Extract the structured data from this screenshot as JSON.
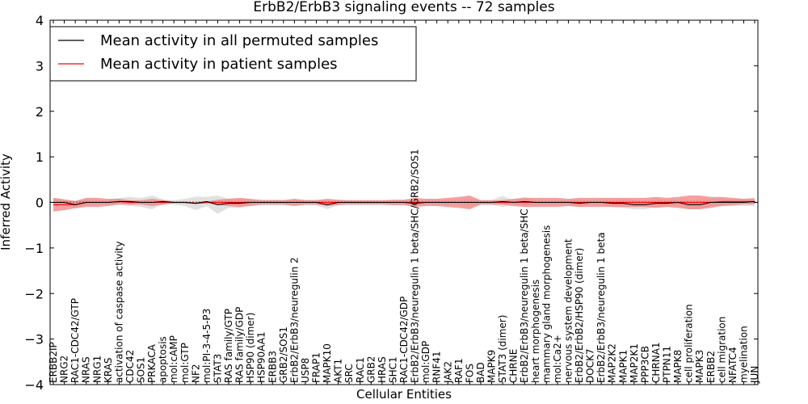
{
  "chart_data": {
    "type": "line",
    "title": "ErbB2/ErbB3 signaling events -- 72 samples",
    "xlabel": "Cellular Entities",
    "ylabel": "Inferred Activity",
    "ylim": [
      -4,
      4
    ],
    "yticks": [
      -4,
      -3,
      -2,
      -1,
      0,
      1,
      2,
      3,
      4
    ],
    "ytick_labels": [
      "−4",
      "−3",
      "−2",
      "−1",
      "0",
      "1",
      "2",
      "3",
      "4"
    ],
    "grid": false,
    "legend_position": "top-left",
    "categories": [
      "ERBB2IP",
      "NRG2",
      "RAC1-CDC42/GTP",
      "NRAS",
      "NRG1",
      "KRAS",
      "activation of caspase activity",
      "CDC42",
      "SOS1",
      "PRKACA",
      "apoptosis",
      "mol:cAMP",
      "mol:GTP",
      "NF2",
      "mol:PI-3-4-5-P3",
      "STAT3",
      "RAS family/GTP",
      "RAS family/GDP",
      "HSP90 (dimer)",
      "HSP90AA1",
      "ERBB3",
      "GRB2/SOS1",
      "ErbB2/ErbB3/neuregulin 2",
      "USP8",
      "FRAP1",
      "MAPK10",
      "AKT1",
      "SRC",
      "RAC1",
      "GRB2",
      "HRAS",
      "SHC1",
      "RAC1-CDC42/GDP",
      "ErbB2/ErbB3/neuregulin 1 beta/SHC/GRB2/SOS1",
      "mol:GDP",
      "RNF41",
      "JAK2",
      "RAF1",
      "FOS",
      "BAD",
      "MAPK9",
      "STAT3 (dimer)",
      "CHRNE",
      "ErbB2/ErbB3/neuregulin 1 beta/SHC",
      "heart morphogenesis",
      "mammary gland morphogenesis",
      "mol:Ca2+",
      "nervous system development",
      "ErbB2/ErbB2/HSP90 (dimer)",
      "DOCK7",
      "ErbB2/ErbB3/neuregulin 1 beta",
      "MAP2K2",
      "MAPK1",
      "MAP2K1",
      "PPP3CB",
      "CHRNA1",
      "PTPN11",
      "MAPK8",
      "cell proliferation",
      "MAPK3",
      "ERBB2",
      "cell migration",
      "NFATC4",
      "myelination",
      "JUN"
    ],
    "series": [
      {
        "name": "Mean activity in all permuted samples",
        "color": "#000000",
        "band_color": "#c8c8c8",
        "values": [
          0.0,
          0.0,
          -0.05,
          0.0,
          0.0,
          0.0,
          0.02,
          0.02,
          0.0,
          0.0,
          0.02,
          0.0,
          0.0,
          -0.02,
          0.02,
          -0.05,
          -0.02,
          -0.02,
          0.0,
          0.0,
          0.0,
          0.0,
          0.0,
          0.0,
          0.0,
          -0.05,
          0.0,
          0.0,
          0.0,
          0.0,
          0.0,
          0.0,
          0.0,
          -0.02,
          0.0,
          0.0,
          0.0,
          0.0,
          0.0,
          0.0,
          0.0,
          0.02,
          0.0,
          0.02,
          0.0,
          0.0,
          0.0,
          0.0,
          -0.02,
          0.0,
          0.0,
          -0.02,
          -0.02,
          -0.05,
          -0.05,
          -0.02,
          -0.02,
          0.0,
          -0.05,
          -0.05,
          0.0,
          0.0,
          0.0,
          0.0,
          0.02
        ],
        "band": [
          0.1,
          0.05,
          0.08,
          0.06,
          0.05,
          0.05,
          0.08,
          0.1,
          0.1,
          0.15,
          0.05,
          0.05,
          0.08,
          0.15,
          0.1,
          0.2,
          0.1,
          0.1,
          0.06,
          0.06,
          0.06,
          0.06,
          0.06,
          0.06,
          0.06,
          0.1,
          0.05,
          0.05,
          0.05,
          0.05,
          0.05,
          0.05,
          0.05,
          0.06,
          0.05,
          0.05,
          0.05,
          0.05,
          0.08,
          0.05,
          0.05,
          0.12,
          0.05,
          0.1,
          0.05,
          0.05,
          0.05,
          0.05,
          0.08,
          0.05,
          0.05,
          0.08,
          0.1,
          0.1,
          0.1,
          0.08,
          0.08,
          0.05,
          0.1,
          0.1,
          0.08,
          0.08,
          0.08,
          0.08,
          0.1
        ]
      },
      {
        "name": "Mean activity in patient samples",
        "color": "#ff0000",
        "band_color": "#f08080",
        "values": [
          -0.05,
          -0.05,
          -0.05,
          0.0,
          0.0,
          0.0,
          0.02,
          0.0,
          0.0,
          0.0,
          0.0,
          0.0,
          0.0,
          -0.02,
          0.0,
          0.0,
          0.0,
          0.0,
          0.0,
          0.0,
          0.0,
          0.0,
          0.0,
          0.0,
          0.0,
          0.0,
          0.0,
          0.0,
          0.0,
          0.0,
          0.0,
          0.0,
          0.0,
          0.0,
          0.0,
          0.0,
          0.0,
          0.0,
          0.0,
          0.0,
          0.0,
          0.0,
          0.0,
          0.0,
          0.0,
          0.0,
          0.0,
          0.0,
          0.0,
          0.0,
          0.0,
          0.0,
          0.0,
          0.0,
          0.0,
          0.0,
          0.0,
          0.0,
          0.0,
          0.0,
          0.0,
          0.02,
          0.02,
          0.02,
          0.02
        ],
        "band": [
          0.15,
          0.12,
          0.08,
          0.1,
          0.1,
          0.08,
          0.06,
          0.05,
          0.05,
          0.08,
          0.05,
          0.02,
          0.02,
          0.02,
          0.02,
          0.06,
          0.08,
          0.1,
          0.08,
          0.05,
          0.05,
          0.05,
          0.08,
          0.05,
          0.05,
          0.08,
          0.06,
          0.05,
          0.05,
          0.05,
          0.05,
          0.06,
          0.06,
          0.1,
          0.08,
          0.08,
          0.1,
          0.12,
          0.15,
          0.05,
          0.05,
          0.05,
          0.08,
          0.1,
          0.1,
          0.1,
          0.1,
          0.08,
          0.1,
          0.1,
          0.1,
          0.1,
          0.1,
          0.1,
          0.1,
          0.12,
          0.1,
          0.12,
          0.15,
          0.15,
          0.12,
          0.1,
          0.08,
          0.06,
          0.06
        ]
      }
    ]
  }
}
